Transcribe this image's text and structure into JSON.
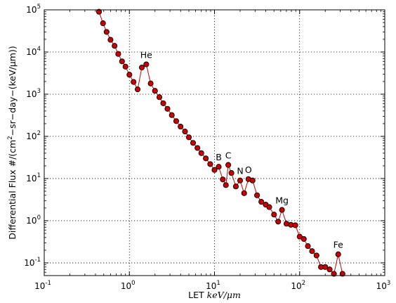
{
  "chart_data": {
    "type": "line",
    "xscale": "log",
    "yscale": "log",
    "xlim": [
      0.1,
      1000
    ],
    "ylim": [
      0.05,
      100000
    ],
    "grid": true,
    "grid_style": "dotted",
    "line_color": "#cc0000",
    "marker_fill": "#cc0000",
    "marker_edge": "#000000",
    "xlabel": {
      "text": "LET ",
      "unit": "keV/μm"
    },
    "ylabel": {
      "text": "Differential Flux   #/(cm",
      "sup": "2",
      "rest": "−sr−day−(keV/μm))"
    },
    "x_ticks": [
      {
        "value": 0.1,
        "base": "10",
        "exp": "-1"
      },
      {
        "value": 1,
        "base": "10",
        "exp": "0"
      },
      {
        "value": 10,
        "base": "10",
        "exp": "1"
      },
      {
        "value": 100,
        "base": "10",
        "exp": "2"
      },
      {
        "value": 1000,
        "base": "10",
        "exp": "3"
      }
    ],
    "y_ticks": [
      {
        "value": 0.1,
        "base": "10",
        "exp": "-1"
      },
      {
        "value": 1,
        "base": "10",
        "exp": "0"
      },
      {
        "value": 10,
        "base": "10",
        "exp": "1"
      },
      {
        "value": 100,
        "base": "10",
        "exp": "2"
      },
      {
        "value": 1000,
        "base": "10",
        "exp": "3"
      },
      {
        "value": 10000,
        "base": "10",
        "exp": "4"
      },
      {
        "value": 100000,
        "base": "10",
        "exp": "5"
      }
    ],
    "series": [
      {
        "points": [
          [
            0.44,
            90000
          ],
          [
            0.49,
            48000
          ],
          [
            0.54,
            30000
          ],
          [
            0.6,
            19500
          ],
          [
            0.67,
            14000
          ],
          [
            0.74,
            9000
          ],
          [
            0.82,
            6000
          ],
          [
            0.9,
            4500
          ],
          [
            1.0,
            2900
          ],
          [
            1.12,
            1950
          ],
          [
            1.25,
            1300
          ],
          [
            1.4,
            4300
          ],
          [
            1.58,
            5100
          ],
          [
            1.78,
            1800
          ],
          [
            2.0,
            1200
          ],
          [
            2.25,
            850
          ],
          [
            2.5,
            610
          ],
          [
            2.8,
            450
          ],
          [
            3.15,
            320
          ],
          [
            3.55,
            230
          ],
          [
            4.0,
            170
          ],
          [
            4.5,
            130
          ],
          [
            5.0,
            95
          ],
          [
            5.6,
            70
          ],
          [
            6.3,
            53
          ],
          [
            7.0,
            40
          ],
          [
            7.9,
            30
          ],
          [
            8.9,
            22
          ],
          [
            10.0,
            16
          ],
          [
            11.2,
            19
          ],
          [
            12.5,
            9.5
          ],
          [
            13.6,
            7
          ],
          [
            14.5,
            21
          ],
          [
            15.8,
            13.5
          ],
          [
            17.8,
            6.5
          ],
          [
            20.0,
            9
          ],
          [
            22.3,
            4.5
          ],
          [
            25.0,
            9.7
          ],
          [
            28.0,
            9.0
          ],
          [
            31.6,
            4.0
          ],
          [
            35.5,
            2.8
          ],
          [
            40.0,
            2.4
          ],
          [
            44.0,
            2.1
          ],
          [
            50.0,
            1.4
          ],
          [
            56.0,
            0.95
          ],
          [
            62.0,
            1.8
          ],
          [
            70.0,
            0.85
          ],
          [
            79.0,
            0.8
          ],
          [
            89.0,
            0.78
          ],
          [
            100.0,
            0.42
          ],
          [
            112.0,
            0.37
          ],
          [
            125.0,
            0.25
          ],
          [
            140.0,
            0.19
          ],
          [
            158.0,
            0.15
          ],
          [
            178.0,
            0.08
          ],
          [
            200.0,
            0.08
          ],
          [
            225.0,
            0.07
          ],
          [
            253.0,
            0.055
          ],
          [
            284.0,
            0.16
          ],
          [
            319.0,
            0.055
          ]
        ]
      }
    ],
    "annotations": [
      {
        "text": "He",
        "x": 1.58,
        "y": 5100
      },
      {
        "text": "B",
        "x": 11.2,
        "y": 19
      },
      {
        "text": "C",
        "x": 14.5,
        "y": 21
      },
      {
        "text": "N",
        "x": 20.0,
        "y": 9
      },
      {
        "text": "O",
        "x": 25.0,
        "y": 9.7
      },
      {
        "text": "Mg",
        "x": 62.0,
        "y": 1.8
      },
      {
        "text": "Fe",
        "x": 284.0,
        "y": 0.16
      }
    ]
  }
}
